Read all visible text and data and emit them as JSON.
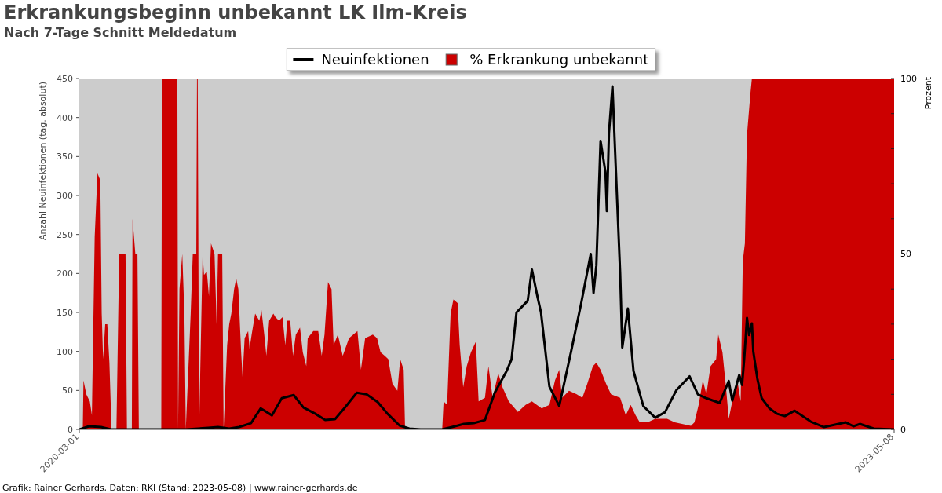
{
  "chart_data": {
    "type": "line",
    "title": "Erkrankungsbeginn unbekannt LK Ilm-Kreis",
    "subtitle": "Nach 7-Tage Schnitt Meldedatum",
    "ylabel": "Anzahl Neuinfektionen (tag. absolut)",
    "y2label": "Prozent",
    "legend": "top",
    "xlim": [
      "2020-03-01",
      "2023-05-08"
    ],
    "xticks": [
      {
        "value": "2020-03-01",
        "label": "2020-03-01"
      },
      {
        "value": "2023-05-08",
        "label": "2023-05-08"
      }
    ],
    "ylim": [
      0,
      450
    ],
    "yticks": [
      0,
      50,
      100,
      150,
      200,
      250,
      300,
      350,
      400,
      450
    ],
    "y2lim": [
      0,
      100
    ],
    "y2ticks": [
      0,
      {
        "value": 10,
        "label": null
      },
      {
        "value": 20,
        "label": null
      },
      {
        "value": 30,
        "label": null
      },
      {
        "value": 40,
        "label": null
      },
      50,
      {
        "value": 60,
        "label": null
      },
      {
        "value": 70,
        "label": null
      },
      {
        "value": 80,
        "label": null
      },
      {
        "value": 90,
        "label": null
      },
      100
    ],
    "series": [
      {
        "name": "Neuinfektionen",
        "color": "#000000",
        "x": [
          "2020-03-01",
          "2020-03-15",
          "2020-04-01",
          "2020-04-15",
          "2020-05-01",
          "2020-06-01",
          "2020-07-01",
          "2020-08-01",
          "2020-09-01",
          "2020-09-15",
          "2020-10-01",
          "2020-10-15",
          "2020-11-01",
          "2020-11-15",
          "2020-12-01",
          "2020-12-15",
          "2021-01-01",
          "2021-01-15",
          "2021-02-01",
          "2021-02-15",
          "2021-03-01",
          "2021-03-15",
          "2021-04-01",
          "2021-04-15",
          "2021-05-01",
          "2021-05-15",
          "2021-06-01",
          "2021-06-15",
          "2021-07-01",
          "2021-08-01",
          "2021-08-15",
          "2021-09-01",
          "2021-09-15",
          "2021-10-01",
          "2021-10-15",
          "2021-11-01",
          "2021-11-08",
          "2021-11-15",
          "2021-12-01",
          "2021-12-07",
          "2021-12-15",
          "2021-12-20",
          "2022-01-01",
          "2022-01-15",
          "2022-02-01",
          "2022-02-15",
          "2022-03-01",
          "2022-03-05",
          "2022-03-09",
          "2022-03-15",
          "2022-03-22",
          "2022-03-24",
          "2022-03-27",
          "2022-04-01",
          "2022-04-06",
          "2022-04-12",
          "2022-04-15",
          "2022-04-23",
          "2022-05-01",
          "2022-05-15",
          "2022-06-01",
          "2022-06-15",
          "2022-07-01",
          "2022-07-20",
          "2022-08-01",
          "2022-08-13",
          "2022-09-01",
          "2022-09-14",
          "2022-09-19",
          "2022-09-29",
          "2022-10-03",
          "2022-10-06",
          "2022-10-10",
          "2022-10-13",
          "2022-10-17",
          "2022-10-19",
          "2022-10-25",
          "2022-10-31",
          "2022-11-11",
          "2022-11-22",
          "2022-12-03",
          "2022-12-17",
          "2023-01-09",
          "2023-01-28",
          "2023-02-28",
          "2023-03-11",
          "2023-03-20",
          "2023-04-09",
          "2023-05-08"
        ],
        "values": [
          0,
          4,
          3,
          0,
          0,
          0,
          0,
          0,
          2,
          3,
          1,
          3,
          8,
          27,
          18,
          40,
          44,
          28,
          20,
          12,
          13,
          28,
          47,
          45,
          35,
          20,
          5,
          1,
          0,
          0,
          3,
          7,
          8,
          12,
          47,
          75,
          90,
          150,
          165,
          205,
          170,
          150,
          55,
          30,
          100,
          160,
          225,
          175,
          210,
          370,
          330,
          280,
          380,
          440,
          330,
          200,
          105,
          155,
          75,
          30,
          15,
          22,
          50,
          68,
          45,
          40,
          34,
          62,
          37,
          70,
          57,
          90,
          143,
          121,
          136,
          100,
          64,
          40,
          27,
          20,
          17,
          24,
          10,
          3,
          9,
          4,
          7,
          1,
          0
        ]
      },
      {
        "name": "% Erkrankung unbekannt",
        "type": "area",
        "axis": "y2",
        "color": "#cc0000",
        "x": [
          "2020-03-01",
          "2020-03-06",
          "2020-03-07",
          "2020-03-11",
          "2020-03-16",
          "2020-03-19",
          "2020-03-23",
          "2020-03-27",
          "2020-03-31",
          "2020-04-02",
          "2020-04-04",
          "2020-04-07",
          "2020-04-10",
          "2020-04-13",
          "2020-04-16",
          "2020-04-23",
          "2020-04-27",
          "2020-05-06",
          "2020-05-08",
          "2020-05-15",
          "2020-05-16",
          "2020-05-20",
          "2020-05-23",
          "2020-05-25",
          "2020-06-26",
          "2020-06-27",
          "2020-07-07",
          "2020-07-10",
          "2020-07-19",
          "2020-07-20",
          "2020-07-22",
          "2020-07-26",
          "2020-07-29",
          "2020-07-31",
          "2020-08-07",
          "2020-08-10",
          "2020-08-15",
          "2020-08-16",
          "2020-08-17",
          "2020-08-19",
          "2020-08-24",
          "2020-08-26",
          "2020-08-30",
          "2020-09-02",
          "2020-09-05",
          "2020-09-10",
          "2020-09-13",
          "2020-09-15",
          "2020-09-21",
          "2020-09-23",
          "2020-09-28",
          "2020-10-01",
          "2020-10-04",
          "2020-10-08",
          "2020-10-11",
          "2020-10-14",
          "2020-10-18",
          "2020-10-20",
          "2020-10-23",
          "2020-10-28",
          "2020-10-30",
          "2020-11-02",
          "2020-11-07",
          "2020-11-13",
          "2020-11-16",
          "2020-11-20",
          "2020-11-23",
          "2020-11-27",
          "2020-12-03",
          "2020-12-06",
          "2020-12-11",
          "2020-12-16",
          "2020-12-20",
          "2020-12-23",
          "2020-12-27",
          "2020-12-31",
          "2021-01-04",
          "2021-01-10",
          "2021-01-14",
          "2021-01-19",
          "2021-01-21",
          "2021-01-29",
          "2021-02-05",
          "2021-02-10",
          "2021-02-14",
          "2021-02-19",
          "2021-02-24",
          "2021-02-27",
          "2021-03-05",
          "2021-03-12",
          "2021-03-21",
          "2021-04-02",
          "2021-04-07",
          "2021-04-13",
          "2021-04-24",
          "2021-04-30",
          "2021-05-05",
          "2021-05-11",
          "2021-05-16",
          "2021-05-22",
          "2021-05-29",
          "2021-06-02",
          "2021-06-07",
          "2021-06-09",
          "2021-08-01",
          "2021-08-03",
          "2021-08-08",
          "2021-08-13",
          "2021-08-17",
          "2021-08-23",
          "2021-08-26",
          "2021-08-31",
          "2021-09-05",
          "2021-09-11",
          "2021-09-18",
          "2021-09-22",
          "2021-10-01",
          "2021-10-06",
          "2021-10-12",
          "2021-10-20",
          "2021-10-26",
          "2021-11-04",
          "2021-11-17",
          "2021-11-28",
          "2021-12-07",
          "2021-12-21",
          "2022-01-01",
          "2022-01-09",
          "2022-01-15",
          "2022-01-19",
          "2022-01-29",
          "2022-02-09",
          "2022-02-17",
          "2022-02-24",
          "2022-03-04",
          "2022-03-09",
          "2022-03-15",
          "2022-03-23",
          "2022-03-30",
          "2022-04-12",
          "2022-04-20",
          "2022-04-27",
          "2022-05-04",
          "2022-05-10",
          "2022-05-21",
          "2022-06-01",
          "2022-06-18",
          "2022-06-29",
          "2022-07-22",
          "2022-07-27",
          "2022-08-02",
          "2022-08-08",
          "2022-08-13",
          "2022-08-19",
          "2022-08-27",
          "2022-08-30",
          "2022-09-05",
          "2022-09-10",
          "2022-09-14",
          "2022-09-21",
          "2022-09-27",
          "2022-10-01",
          "2022-10-04",
          "2022-10-07",
          "2022-10-10",
          "2022-10-15",
          "2022-10-17",
          "2023-05-08"
        ],
        "values": [
          0,
          0,
          14,
          10,
          8,
          4,
          55,
          73,
          71,
          33,
          20,
          30,
          30,
          19,
          0,
          0,
          50,
          50,
          0,
          0,
          60,
          50,
          50,
          0,
          0,
          100,
          100,
          100,
          100,
          0,
          40,
          50,
          33,
          0,
          33,
          50,
          50,
          100,
          100,
          0,
          50,
          44,
          45,
          38,
          53,
          50,
          30,
          50,
          50,
          0,
          24,
          30,
          33,
          40,
          43,
          40,
          22,
          15,
          26,
          28,
          23,
          27,
          33,
          31,
          34,
          27,
          21,
          31,
          33,
          32,
          31,
          32,
          24,
          31,
          31,
          21,
          27,
          29,
          22,
          18,
          26,
          28,
          28,
          21,
          27,
          42,
          40,
          24,
          27,
          21,
          26,
          28,
          17,
          26,
          27,
          26,
          22,
          21,
          20,
          13,
          11,
          20,
          17,
          0,
          0,
          8,
          7,
          33,
          37,
          36,
          24,
          12,
          18,
          22,
          25,
          8,
          9,
          18,
          9,
          16,
          12,
          8,
          5,
          7,
          8,
          6,
          7,
          14,
          17,
          9,
          11,
          10,
          9,
          13,
          18,
          19,
          17,
          13,
          10,
          9,
          4,
          7,
          4,
          2,
          2,
          3,
          3,
          2,
          1,
          2,
          7,
          14,
          10,
          18,
          20,
          27,
          22,
          12,
          3,
          10,
          13,
          8,
          48,
          53,
          84,
          96,
          100,
          100
        ]
      }
    ],
    "annotations": [
      "Grafik: Rainer Gerhards, Daten: RKI (Stand: 2023-05-08) | www.rainer-gerhards.de"
    ]
  }
}
